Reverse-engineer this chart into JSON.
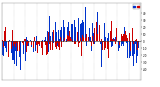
{
  "bar_color_blue": "#0033cc",
  "bar_color_red": "#cc0000",
  "n_points": 365,
  "seed": 42,
  "ylim": [
    -55,
    55
  ],
  "ytick_values": [
    -40,
    -30,
    -20,
    -10,
    0,
    10,
    20,
    30,
    40
  ],
  "ytick_labels": [
    "-40",
    "-30",
    "-20",
    "-10",
    "0",
    "10",
    "20",
    "30",
    "40"
  ],
  "background": "#ffffff",
  "grid_color": "#aaaaaa",
  "n_vgrid": 13,
  "bar_width": 0.8,
  "title_fontsize": 2.2,
  "tick_fontsize": 2.0,
  "legend_fontsize": 1.8
}
